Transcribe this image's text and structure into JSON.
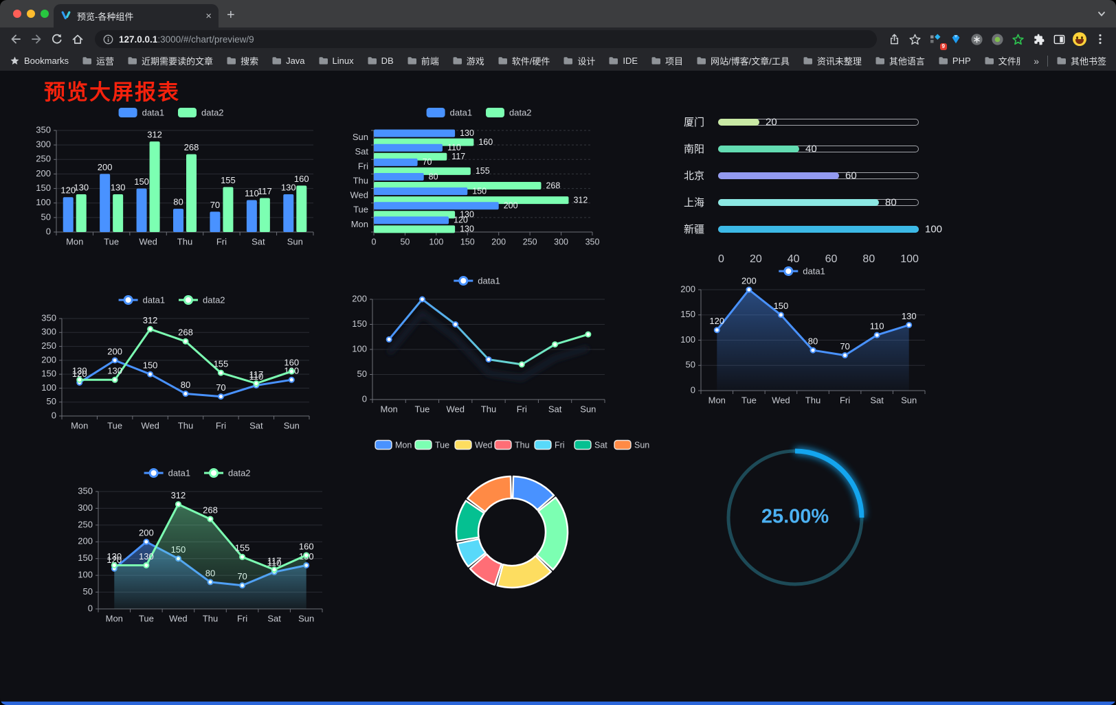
{
  "browser": {
    "tab_title": "预览-各种组件",
    "url_host": "127.0.0.1",
    "url_rest": ":3000/#/chart/preview/9",
    "bookmarks_label": "Bookmarks",
    "bookmarks": [
      "运营",
      "近期需要读的文章",
      "搜索",
      "Java",
      "Linux",
      "DB",
      "前端",
      "游戏",
      "软件/硬件",
      "设计",
      "IDE",
      "项目",
      "网站/博客/文章/工具",
      "资讯未整理",
      "其他语言",
      "PHP",
      "文件服务器"
    ],
    "bookmarks_overflow": "»",
    "other_bookmarks": "其他书签",
    "extension_badge": "9"
  },
  "page": {
    "title": "预览大屏报表",
    "title_color": "#f5220d"
  },
  "chart_data": [
    {
      "id": "bar-grouped",
      "type": "bar",
      "title": "",
      "xlabel": "",
      "ylabel": "",
      "categories": [
        "Mon",
        "Tue",
        "Wed",
        "Thu",
        "Fri",
        "Sat",
        "Sun"
      ],
      "series": [
        {
          "name": "data1",
          "color": "#4992ff",
          "values": [
            120,
            200,
            150,
            80,
            70,
            110,
            130
          ]
        },
        {
          "name": "data2",
          "color": "#7cffb2",
          "values": [
            130,
            130,
            312,
            268,
            155,
            117,
            160
          ]
        }
      ],
      "ylim": [
        0,
        350
      ],
      "ytick": 50,
      "grid": true,
      "legend_position": "top",
      "show_labels": true
    },
    {
      "id": "bar-horizontal",
      "type": "bar",
      "orientation": "horizontal",
      "categories": [
        "Mon",
        "Tue",
        "Wed",
        "Thu",
        "Fri",
        "Sat",
        "Sun"
      ],
      "series": [
        {
          "name": "data1",
          "color": "#4992ff",
          "values": [
            120,
            200,
            150,
            80,
            70,
            110,
            130
          ]
        },
        {
          "name": "data2",
          "color": "#7cffb2",
          "values": [
            130,
            130,
            312,
            268,
            155,
            117,
            160
          ]
        }
      ],
      "xlim": [
        0,
        350
      ],
      "xtick": 50,
      "grid": true,
      "legend_position": "top",
      "show_labels": true
    },
    {
      "id": "progress-list",
      "type": "bar",
      "variant": "progress",
      "items": [
        {
          "label": "厦门",
          "value": 20,
          "color": "#c9e9a5"
        },
        {
          "label": "南阳",
          "value": 40,
          "color": "#63dcb2"
        },
        {
          "label": "北京",
          "value": 60,
          "color": "#939af0"
        },
        {
          "label": "上海",
          "value": 80,
          "color": "#8ce8e3"
        },
        {
          "label": "新疆",
          "value": 100,
          "color": "#3cb9e6"
        }
      ],
      "max": 100,
      "axis_ticks": [
        0,
        20,
        40,
        60,
        80,
        100
      ]
    },
    {
      "id": "line-two",
      "type": "line",
      "categories": [
        "Mon",
        "Tue",
        "Wed",
        "Thu",
        "Fri",
        "Sat",
        "Sun"
      ],
      "series": [
        {
          "name": "data1",
          "color": "#4992ff",
          "values": [
            120,
            200,
            150,
            80,
            70,
            110,
            130
          ]
        },
        {
          "name": "data2",
          "color": "#7cffb2",
          "values": [
            130,
            130,
            312,
            268,
            155,
            117,
            160
          ]
        }
      ],
      "ylim": [
        0,
        350
      ],
      "ytick": 50,
      "grid": true,
      "legend_position": "top",
      "show_labels": true
    },
    {
      "id": "line-gradient",
      "type": "line",
      "categories": [
        "Mon",
        "Tue",
        "Wed",
        "Thu",
        "Fri",
        "Sat",
        "Sun"
      ],
      "series": [
        {
          "name": "data1",
          "gradient": [
            "#4992ff",
            "#7cffb2"
          ],
          "color": "#4992ff",
          "values": [
            120,
            200,
            150,
            80,
            70,
            110,
            130
          ],
          "shadow": true
        }
      ],
      "ylim": [
        0,
        200
      ],
      "ytick": 50,
      "grid": true,
      "legend_position": "top",
      "show_labels": false
    },
    {
      "id": "line-area",
      "type": "line",
      "categories": [
        "Mon",
        "Tue",
        "Wed",
        "Thu",
        "Fri",
        "Sat",
        "Sun"
      ],
      "series": [
        {
          "name": "data1",
          "color": "#4992ff",
          "values": [
            120,
            200,
            150,
            80,
            70,
            110,
            130
          ],
          "area": [
            "rgba(73,146,255,0.45)",
            "rgba(73,146,255,0.03)"
          ]
        }
      ],
      "ylim": [
        0,
        200
      ],
      "ytick": 50,
      "grid": true,
      "legend_position": "top",
      "show_labels": true
    },
    {
      "id": "line-two-area",
      "type": "line",
      "categories": [
        "Mon",
        "Tue",
        "Wed",
        "Thu",
        "Fri",
        "Sat",
        "Sun"
      ],
      "series": [
        {
          "name": "data1",
          "color": "#4992ff",
          "values": [
            120,
            200,
            150,
            80,
            70,
            110,
            130
          ],
          "area": [
            "rgba(73,146,255,0.5)",
            "rgba(73,146,255,0.04)"
          ]
        },
        {
          "name": "data2",
          "color": "#7cffb2",
          "values": [
            130,
            130,
            312,
            268,
            155,
            117,
            160
          ],
          "area": [
            "rgba(124,255,178,0.4)",
            "rgba(124,255,178,0.04)"
          ]
        }
      ],
      "ylim": [
        0,
        350
      ],
      "ytick": 50,
      "grid": true,
      "legend_position": "top",
      "show_labels": true
    },
    {
      "id": "donut-week",
      "type": "pie",
      "donut": true,
      "items": [
        {
          "name": "Mon",
          "value": 120,
          "color": "#4992ff"
        },
        {
          "name": "Tue",
          "value": 200,
          "color": "#7cffb2"
        },
        {
          "name": "Wed",
          "value": 150,
          "color": "#fddd60"
        },
        {
          "name": "Thu",
          "value": 80,
          "color": "#ff6e76"
        },
        {
          "name": "Fri",
          "value": 70,
          "color": "#58d9f9"
        },
        {
          "name": "Sat",
          "value": 110,
          "color": "#05c091"
        },
        {
          "name": "Sun",
          "value": 130,
          "color": "#ff8a45"
        }
      ],
      "legend_position": "top"
    },
    {
      "id": "ring-progress",
      "type": "ring-progress",
      "label": "25.00%",
      "percent": 25,
      "color": "#14a5ee",
      "track_color": "#1d4a57",
      "text_color": "#4cb1f2"
    }
  ]
}
